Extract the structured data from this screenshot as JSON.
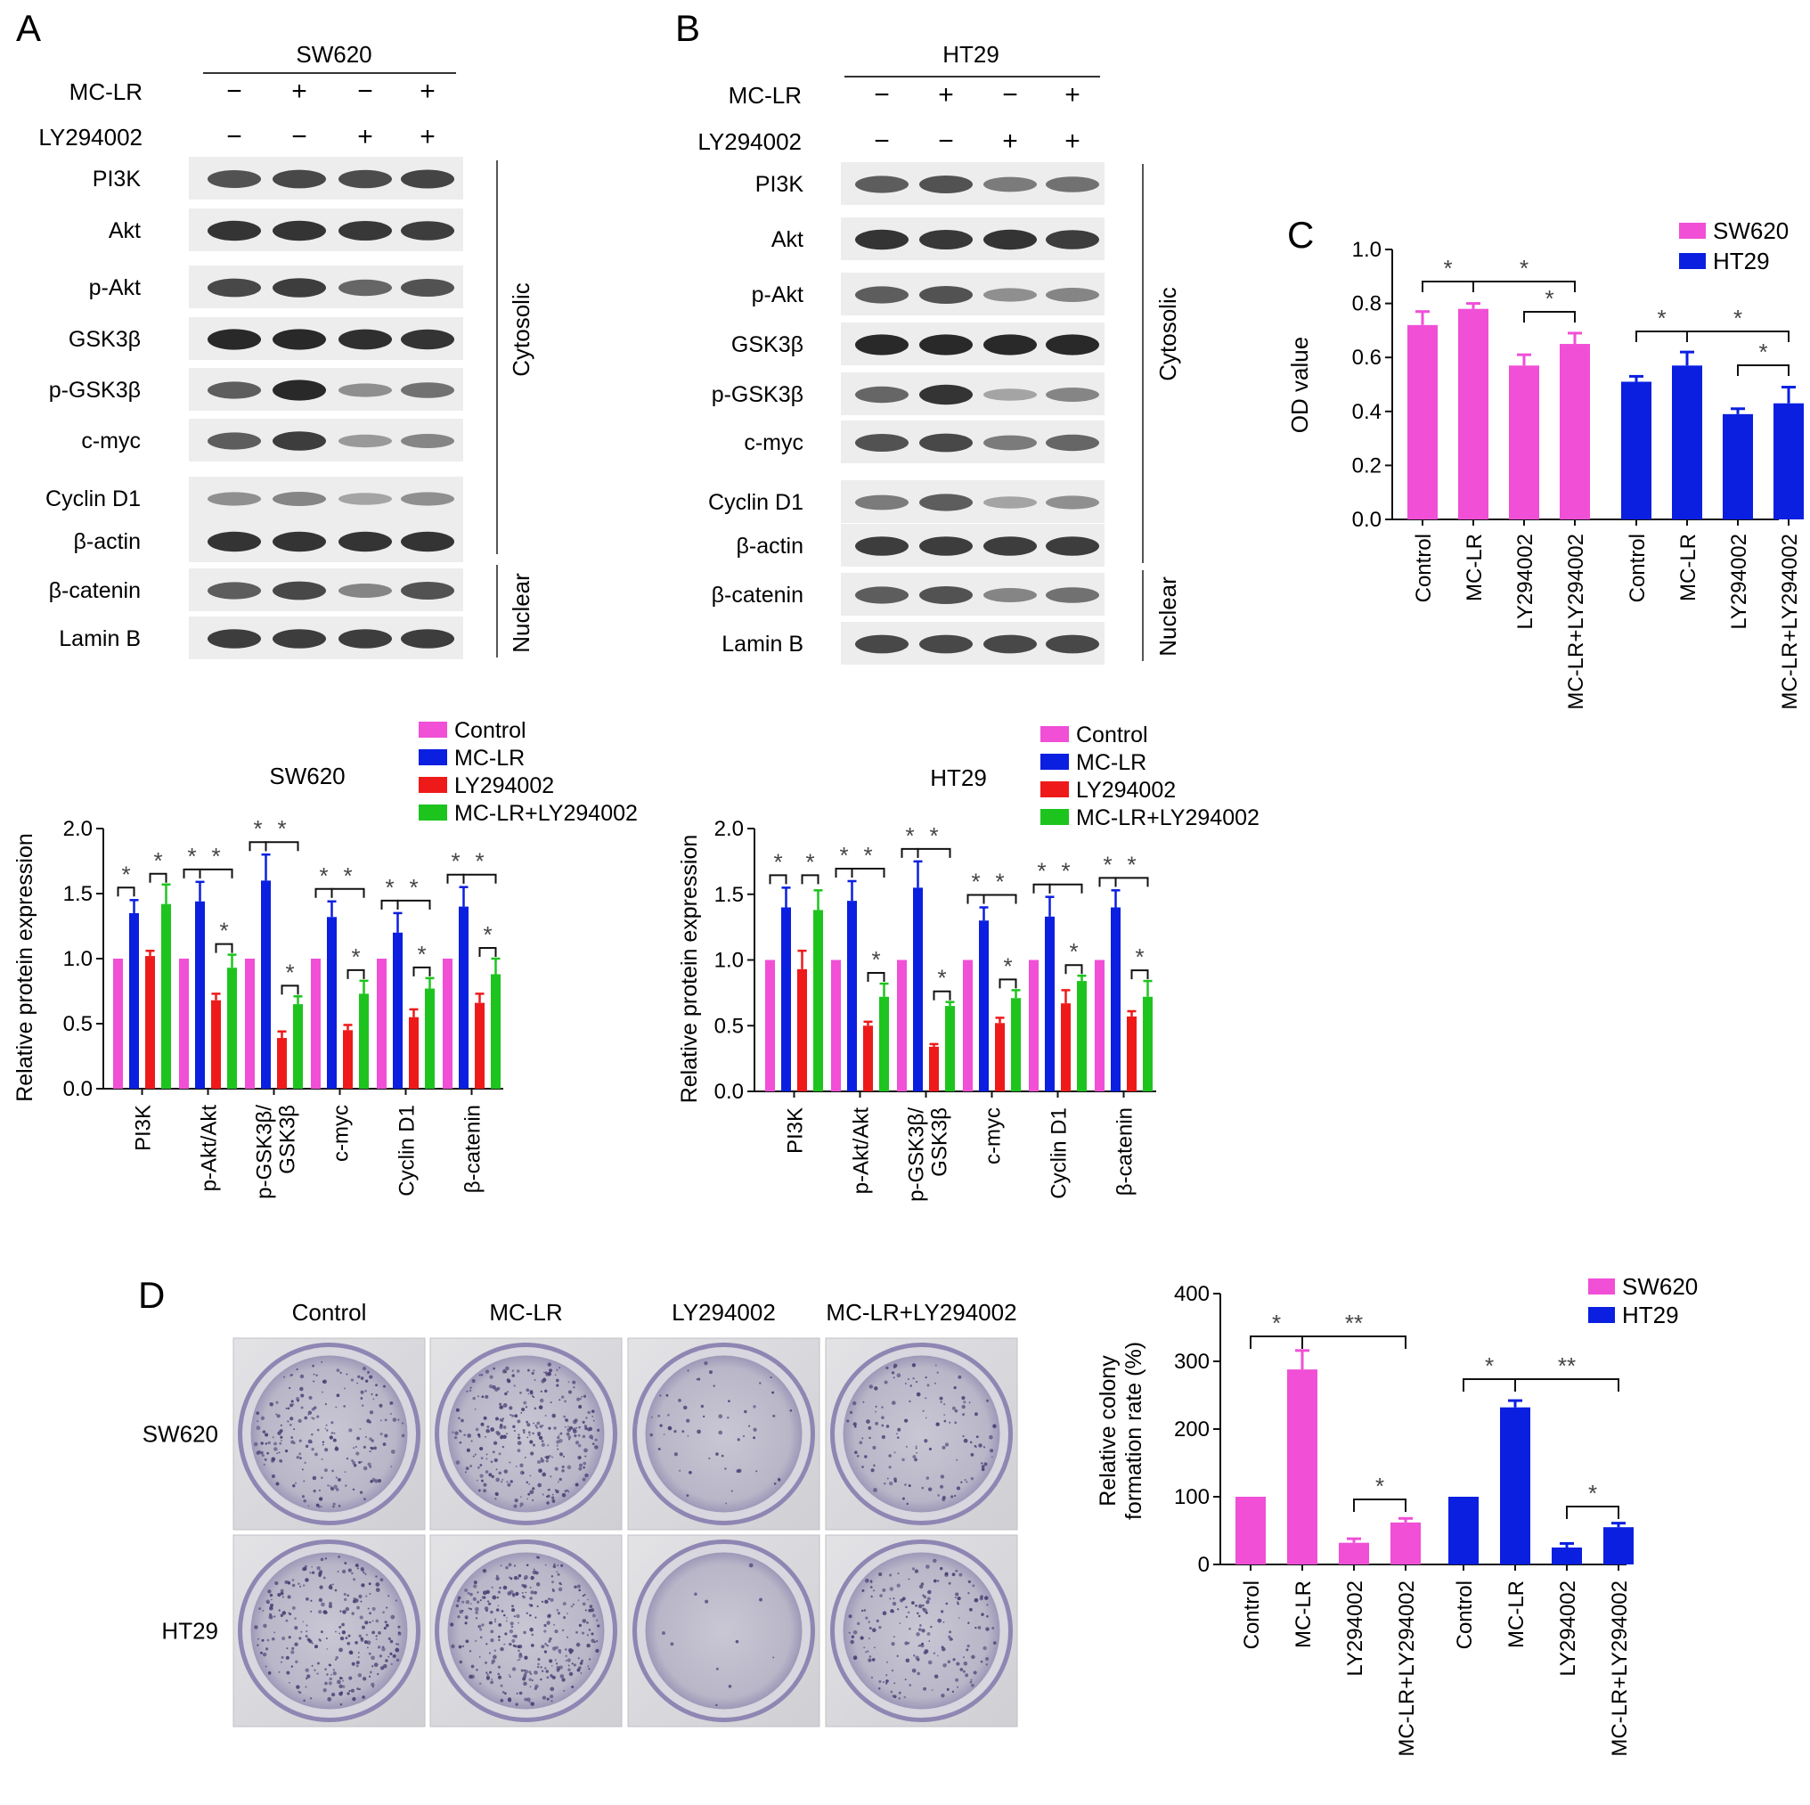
{
  "panel_letters": {
    "a": "A",
    "b": "B",
    "c": "C",
    "d": "D"
  },
  "colors": {
    "control": "#f04fd6",
    "mclr": "#0a1fe0",
    "ly": "#ee1a1a",
    "combo": "#1ec41e",
    "sw620": "#f04fd6",
    "ht29": "#0a1fe0"
  },
  "blot_a": {
    "cell_line": "SW620",
    "treat_labels": [
      "MC-LR",
      "LY294002"
    ],
    "signs": [
      [
        "−",
        "+",
        "−",
        "+"
      ],
      [
        "−",
        "−",
        "+",
        "+"
      ]
    ],
    "proteins": [
      "PI3K",
      "Akt",
      "p-Akt",
      "GSK3β",
      "p-GSK3β",
      "c-myc",
      "Cyclin D1",
      "β-actin",
      "β-catenin",
      "Lamin B"
    ],
    "fractions": [
      "Cytosolic",
      "Nuclear"
    ],
    "band_intensity": [
      [
        0.75,
        0.8,
        0.78,
        0.82
      ],
      [
        0.9,
        0.9,
        0.88,
        0.85
      ],
      [
        0.8,
        0.85,
        0.65,
        0.75
      ],
      [
        0.95,
        0.95,
        0.92,
        0.9
      ],
      [
        0.7,
        0.95,
        0.45,
        0.6
      ],
      [
        0.7,
        0.85,
        0.4,
        0.5
      ],
      [
        0.45,
        0.5,
        0.35,
        0.45
      ],
      [
        0.9,
        0.9,
        0.9,
        0.9
      ],
      [
        0.7,
        0.8,
        0.5,
        0.75
      ],
      [
        0.85,
        0.85,
        0.85,
        0.85
      ]
    ]
  },
  "blot_b": {
    "cell_line": "HT29",
    "treat_labels": [
      "MC-LR",
      "LY294002"
    ],
    "signs": [
      [
        "−",
        "+",
        "−",
        "+"
      ],
      [
        "−",
        "−",
        "+",
        "+"
      ]
    ],
    "proteins": [
      "PI3K",
      "Akt",
      "p-Akt",
      "GSK3β",
      "p-GSK3β",
      "c-myc",
      "Cyclin D1",
      "β-actin",
      "β-catenin",
      "Lamin B"
    ],
    "fractions": [
      "Cytosolic",
      "Nuclear"
    ],
    "band_intensity": [
      [
        0.7,
        0.75,
        0.55,
        0.6
      ],
      [
        0.9,
        0.88,
        0.9,
        0.85
      ],
      [
        0.7,
        0.75,
        0.45,
        0.5
      ],
      [
        0.95,
        0.95,
        0.95,
        0.95
      ],
      [
        0.65,
        0.9,
        0.35,
        0.5
      ],
      [
        0.75,
        0.8,
        0.55,
        0.65
      ],
      [
        0.55,
        0.7,
        0.35,
        0.45
      ],
      [
        0.85,
        0.85,
        0.85,
        0.85
      ],
      [
        0.7,
        0.75,
        0.5,
        0.6
      ],
      [
        0.8,
        0.8,
        0.8,
        0.8
      ]
    ]
  },
  "chart_data": [
    {
      "id": "C",
      "type": "bar",
      "ylabel": "OD value",
      "ylim": [
        0,
        1.0
      ],
      "yticks": [
        "0.0",
        "0.2",
        "0.4",
        "0.6",
        "0.8",
        "1.0"
      ],
      "legend": [
        "SW620",
        "HT29"
      ],
      "groups": [
        {
          "name": "SW620",
          "categories": [
            "Control",
            "MC-LR",
            "LY294002",
            "MC-LR+LY294002"
          ],
          "values": [
            0.72,
            0.78,
            0.57,
            0.65
          ],
          "errors": [
            0.05,
            0.02,
            0.04,
            0.04
          ]
        },
        {
          "name": "HT29",
          "categories": [
            "Control",
            "MC-LR",
            "LY294002",
            "MC-LR+LY294002"
          ],
          "values": [
            0.51,
            0.57,
            0.39,
            0.43
          ],
          "errors": [
            0.02,
            0.05,
            0.02,
            0.06
          ]
        }
      ],
      "sig_mark": "*"
    },
    {
      "id": "A-quant",
      "type": "bar",
      "title": "SW620",
      "ylabel": "Relative protein expression",
      "ylim": [
        0,
        2.0
      ],
      "yticks": [
        "0.0",
        "0.5",
        "1.0",
        "1.5",
        "2.0"
      ],
      "legend": [
        "Control",
        "MC-LR",
        "LY294002",
        "MC-LR+LY294002"
      ],
      "categories": [
        "PI3K",
        "p-Akt/Akt",
        "p-GSK3β/\nGSK3β",
        "c-myc",
        "Cyclin D1",
        "β-catenin"
      ],
      "series": [
        {
          "name": "Control",
          "values": [
            1.0,
            1.0,
            1.0,
            1.0,
            1.0,
            1.0
          ],
          "errors": [
            0,
            0,
            0,
            0,
            0,
            0
          ]
        },
        {
          "name": "MC-LR",
          "values": [
            1.35,
            1.44,
            1.6,
            1.32,
            1.2,
            1.4
          ],
          "errors": [
            0.1,
            0.15,
            0.2,
            0.12,
            0.15,
            0.15
          ]
        },
        {
          "name": "LY294002",
          "values": [
            1.02,
            0.68,
            0.39,
            0.45,
            0.55,
            0.66
          ],
          "errors": [
            0.04,
            0.05,
            0.05,
            0.04,
            0.06,
            0.07
          ]
        },
        {
          "name": "MC-LR+LY294002",
          "values": [
            1.42,
            0.93,
            0.65,
            0.73,
            0.77,
            0.88
          ],
          "errors": [
            0.15,
            0.1,
            0.06,
            0.1,
            0.08,
            0.12
          ]
        }
      ],
      "sig_mark": "*"
    },
    {
      "id": "B-quant",
      "type": "bar",
      "title": "HT29",
      "ylabel": "Relative protein expression",
      "ylim": [
        0,
        2.0
      ],
      "yticks": [
        "0.0",
        "0.5",
        "1.0",
        "1.5",
        "2.0"
      ],
      "legend": [
        "Control",
        "MC-LR",
        "LY294002",
        "MC-LR+LY294002"
      ],
      "categories": [
        "PI3K",
        "p-Akt/Akt",
        "p-GSK3β/\nGSK3β",
        "c-myc",
        "Cyclin D1",
        "β-catenin"
      ],
      "series": [
        {
          "name": "Control",
          "values": [
            1.0,
            1.0,
            1.0,
            1.0,
            1.0,
            1.0
          ],
          "errors": [
            0,
            0,
            0,
            0,
            0,
            0
          ]
        },
        {
          "name": "MC-LR",
          "values": [
            1.4,
            1.45,
            1.55,
            1.3,
            1.33,
            1.4
          ],
          "errors": [
            0.15,
            0.15,
            0.2,
            0.1,
            0.15,
            0.13
          ]
        },
        {
          "name": "LY294002",
          "values": [
            0.93,
            0.5,
            0.34,
            0.52,
            0.67,
            0.57
          ],
          "errors": [
            0.14,
            0.03,
            0.02,
            0.04,
            0.1,
            0.04
          ]
        },
        {
          "name": "MC-LR+LY294002",
          "values": [
            1.38,
            0.72,
            0.65,
            0.71,
            0.84,
            0.72
          ],
          "errors": [
            0.15,
            0.1,
            0.03,
            0.06,
            0.04,
            0.12
          ]
        }
      ],
      "sig_mark": "*"
    },
    {
      "id": "D-chart",
      "type": "bar",
      "ylabel": "Relative colony\nformation rate (%)",
      "ylim": [
        0,
        400
      ],
      "yticks": [
        "0",
        "100",
        "200",
        "300",
        "400"
      ],
      "legend": [
        "SW620",
        "HT29"
      ],
      "groups": [
        {
          "name": "SW620",
          "categories": [
            "Control",
            "MC-LR",
            "LY294002",
            "MC-LR+LY294002"
          ],
          "values": [
            100,
            288,
            32,
            62
          ],
          "errors": [
            0,
            28,
            6,
            6
          ]
        },
        {
          "name": "HT29",
          "categories": [
            "Control",
            "MC-LR",
            "LY294002",
            "MC-LR+LY294002"
          ],
          "values": [
            100,
            232,
            25,
            55
          ],
          "errors": [
            0,
            10,
            6,
            6
          ]
        }
      ],
      "sig_mark": "*",
      "sig_mark_2": "**"
    }
  ],
  "colony": {
    "columns": [
      "Control",
      "MC-LR",
      "LY294002",
      "MC-LR+LY294002"
    ],
    "rows": [
      "SW620",
      "HT29"
    ],
    "density": [
      [
        0.55,
        0.8,
        0.15,
        0.35
      ],
      [
        0.7,
        0.85,
        0.03,
        0.5
      ]
    ]
  }
}
